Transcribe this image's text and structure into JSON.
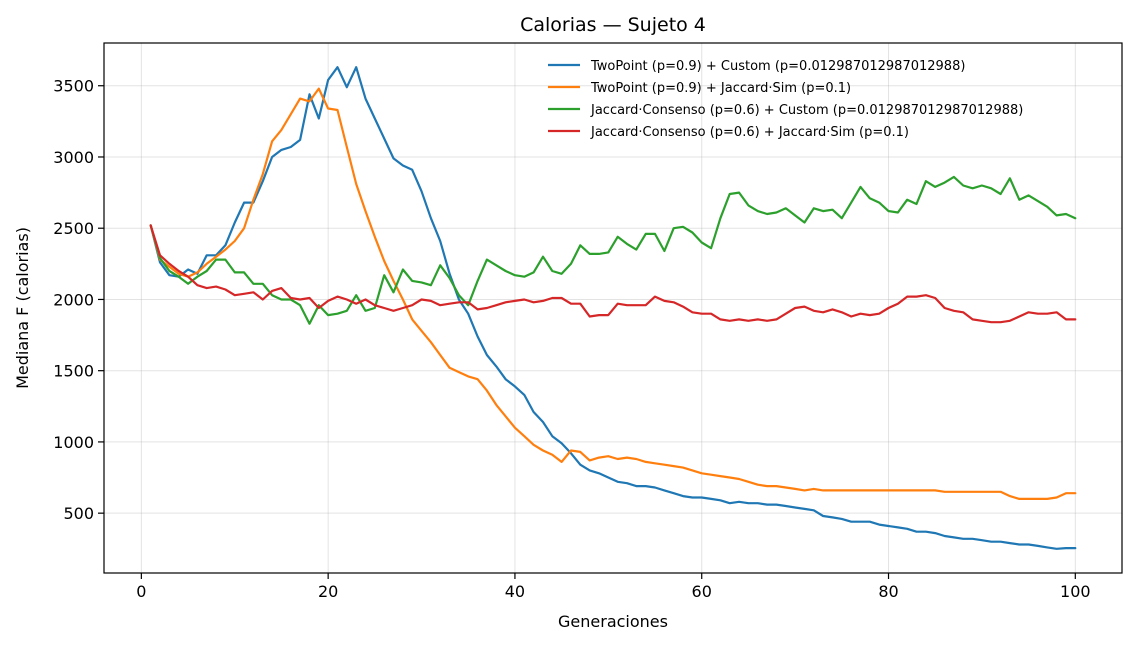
{
  "chart_data": {
    "type": "line",
    "title": "Calorias — Sujeto 4",
    "xlabel": "Generaciones",
    "ylabel": "Mediana F (calorias)",
    "xlim": [
      -4,
      105
    ],
    "ylim": [
      80,
      3800
    ],
    "xticks": [
      0,
      20,
      40,
      60,
      80,
      100
    ],
    "yticks": [
      500,
      1000,
      1500,
      2000,
      2500,
      3000,
      3500
    ],
    "grid": true,
    "legend_position": "top-right",
    "series": [
      {
        "name": "TwoPoint (p=0.9) + Custom (p=0.012987012987012988)",
        "color": "#1f77b4",
        "x": [
          1,
          2,
          3,
          4,
          5,
          6,
          7,
          8,
          9,
          10,
          11,
          12,
          13,
          14,
          15,
          16,
          17,
          18,
          19,
          20,
          21,
          22,
          23,
          24,
          25,
          26,
          27,
          28,
          29,
          30,
          31,
          32,
          33,
          34,
          35,
          36,
          37,
          38,
          39,
          40,
          41,
          42,
          43,
          44,
          45,
          46,
          47,
          48,
          49,
          50,
          51,
          52,
          53,
          54,
          55,
          56,
          57,
          58,
          59,
          60,
          61,
          62,
          63,
          64,
          65,
          66,
          67,
          68,
          69,
          70,
          71,
          72,
          73,
          74,
          75,
          76,
          77,
          78,
          79,
          80,
          81,
          82,
          83,
          84,
          85,
          86,
          87,
          88,
          89,
          90,
          91,
          92,
          93,
          94,
          95,
          96,
          97,
          98,
          99,
          100
        ],
        "values": [
          2520,
          2260,
          2170,
          2160,
          2210,
          2180,
          2310,
          2310,
          2380,
          2540,
          2680,
          2680,
          2830,
          3000,
          3050,
          3070,
          3120,
          3440,
          3270,
          3540,
          3630,
          3490,
          3630,
          3410,
          3270,
          3130,
          2990,
          2940,
          2910,
          2760,
          2570,
          2410,
          2180,
          2000,
          1900,
          1740,
          1610,
          1530,
          1440,
          1390,
          1330,
          1210,
          1140,
          1040,
          990,
          920,
          840,
          800,
          780,
          750,
          720,
          710,
          690,
          690,
          680,
          660,
          640,
          620,
          610,
          610,
          600,
          590,
          570,
          580,
          570,
          570,
          560,
          560,
          550,
          540,
          530,
          520,
          480,
          470,
          460,
          440,
          440,
          440,
          420,
          410,
          400,
          390,
          370,
          370,
          360,
          340,
          330,
          320,
          320,
          310,
          300,
          300,
          290,
          280,
          280,
          270,
          260,
          250,
          255,
          255
        ]
      },
      {
        "name": "TwoPoint (p=0.9) + Jaccard·Sim (p=0.1)",
        "color": "#ff7f0e",
        "x": [
          1,
          2,
          3,
          4,
          5,
          6,
          7,
          8,
          9,
          10,
          11,
          12,
          13,
          14,
          15,
          16,
          17,
          18,
          19,
          20,
          21,
          22,
          23,
          24,
          25,
          26,
          27,
          28,
          29,
          30,
          31,
          32,
          33,
          34,
          35,
          36,
          37,
          38,
          39,
          40,
          41,
          42,
          43,
          44,
          45,
          46,
          47,
          48,
          49,
          50,
          51,
          52,
          53,
          54,
          55,
          56,
          57,
          58,
          59,
          60,
          61,
          62,
          63,
          64,
          65,
          66,
          67,
          68,
          69,
          70,
          71,
          72,
          73,
          74,
          75,
          76,
          77,
          78,
          79,
          80,
          81,
          82,
          83,
          84,
          85,
          86,
          87,
          88,
          89,
          90,
          91,
          92,
          93,
          94,
          95,
          96,
          97,
          98,
          99,
          100
        ],
        "values": [
          2520,
          2280,
          2230,
          2180,
          2160,
          2190,
          2250,
          2300,
          2350,
          2410,
          2500,
          2700,
          2880,
          3110,
          3190,
          3300,
          3410,
          3390,
          3480,
          3340,
          3330,
          3070,
          2810,
          2620,
          2440,
          2270,
          2130,
          2000,
          1860,
          1780,
          1700,
          1610,
          1520,
          1490,
          1460,
          1440,
          1360,
          1260,
          1180,
          1100,
          1040,
          980,
          940,
          910,
          860,
          940,
          930,
          870,
          890,
          900,
          880,
          890,
          880,
          860,
          850,
          840,
          830,
          820,
          800,
          780,
          770,
          760,
          750,
          740,
          720,
          700,
          690,
          690,
          680,
          670,
          660,
          670,
          660,
          660,
          660,
          660,
          660,
          660,
          660,
          660,
          660,
          660,
          660,
          660,
          660,
          650,
          650,
          650,
          650,
          650,
          650,
          650,
          620,
          600,
          600,
          600,
          600,
          610,
          640,
          640
        ]
      },
      {
        "name": "Jaccard·Consenso (p=0.6) + Custom (p=0.012987012987012988)",
        "color": "#2ca02c",
        "x": [
          1,
          2,
          3,
          4,
          5,
          6,
          7,
          8,
          9,
          10,
          11,
          12,
          13,
          14,
          15,
          16,
          17,
          18,
          19,
          20,
          21,
          22,
          23,
          24,
          25,
          26,
          27,
          28,
          29,
          30,
          31,
          32,
          33,
          34,
          35,
          36,
          37,
          38,
          39,
          40,
          41,
          42,
          43,
          44,
          45,
          46,
          47,
          48,
          49,
          50,
          51,
          52,
          53,
          54,
          55,
          56,
          57,
          58,
          59,
          60,
          61,
          62,
          63,
          64,
          65,
          66,
          67,
          68,
          69,
          70,
          71,
          72,
          73,
          74,
          75,
          76,
          77,
          78,
          79,
          80,
          81,
          82,
          83,
          84,
          85,
          86,
          87,
          88,
          89,
          90,
          91,
          92,
          93,
          94,
          95,
          96,
          97,
          98,
          99,
          100
        ],
        "values": [
          2520,
          2290,
          2200,
          2160,
          2110,
          2160,
          2200,
          2280,
          2280,
          2190,
          2190,
          2110,
          2110,
          2030,
          2000,
          2000,
          1960,
          1830,
          1960,
          1890,
          1900,
          1920,
          2030,
          1920,
          1940,
          2170,
          2050,
          2210,
          2130,
          2120,
          2100,
          2240,
          2150,
          2030,
          1960,
          2130,
          2280,
          2240,
          2200,
          2170,
          2160,
          2190,
          2300,
          2200,
          2180,
          2250,
          2380,
          2320,
          2320,
          2330,
          2440,
          2390,
          2350,
          2460,
          2460,
          2340,
          2500,
          2510,
          2470,
          2400,
          2360,
          2570,
          2740,
          2750,
          2660,
          2620,
          2600,
          2610,
          2640,
          2590,
          2540,
          2640,
          2620,
          2630,
          2570,
          2680,
          2790,
          2710,
          2680,
          2620,
          2610,
          2700,
          2670,
          2830,
          2790,
          2820,
          2860,
          2800,
          2780,
          2800,
          2780,
          2740,
          2850,
          2700,
          2730,
          2690,
          2650,
          2590,
          2600,
          2570
        ]
      },
      {
        "name": "Jaccard·Consenso (p=0.6) + Jaccard·Sim (p=0.1)",
        "color": "#d62728",
        "x": [
          1,
          2,
          3,
          4,
          5,
          6,
          7,
          8,
          9,
          10,
          11,
          12,
          13,
          14,
          15,
          16,
          17,
          18,
          19,
          20,
          21,
          22,
          23,
          24,
          25,
          26,
          27,
          28,
          29,
          30,
          31,
          32,
          33,
          34,
          35,
          36,
          37,
          38,
          39,
          40,
          41,
          42,
          43,
          44,
          45,
          46,
          47,
          48,
          49,
          50,
          51,
          52,
          53,
          54,
          55,
          56,
          57,
          58,
          59,
          60,
          61,
          62,
          63,
          64,
          65,
          66,
          67,
          68,
          69,
          70,
          71,
          72,
          73,
          74,
          75,
          76,
          77,
          78,
          79,
          80,
          81,
          82,
          83,
          84,
          85,
          86,
          87,
          88,
          89,
          90,
          91,
          92,
          93,
          94,
          95,
          96,
          97,
          98,
          99,
          100
        ],
        "values": [
          2520,
          2310,
          2250,
          2200,
          2160,
          2100,
          2080,
          2090,
          2070,
          2030,
          2040,
          2050,
          2000,
          2060,
          2080,
          2010,
          2000,
          2010,
          1940,
          1990,
          2020,
          2000,
          1970,
          2000,
          1960,
          1940,
          1920,
          1940,
          1960,
          2000,
          1990,
          1960,
          1970,
          1980,
          1980,
          1930,
          1940,
          1960,
          1980,
          1990,
          2000,
          1980,
          1990,
          2010,
          2010,
          1970,
          1970,
          1880,
          1890,
          1890,
          1970,
          1960,
          1960,
          1960,
          2020,
          1990,
          1980,
          1950,
          1910,
          1900,
          1900,
          1860,
          1850,
          1860,
          1850,
          1860,
          1850,
          1860,
          1900,
          1940,
          1950,
          1920,
          1910,
          1930,
          1910,
          1880,
          1900,
          1890,
          1900,
          1940,
          1970,
          2020,
          2020,
          2030,
          2010,
          1940,
          1920,
          1910,
          1860,
          1850,
          1840,
          1840,
          1850,
          1880,
          1910,
          1900,
          1900,
          1910,
          1860,
          1860
        ]
      }
    ]
  }
}
